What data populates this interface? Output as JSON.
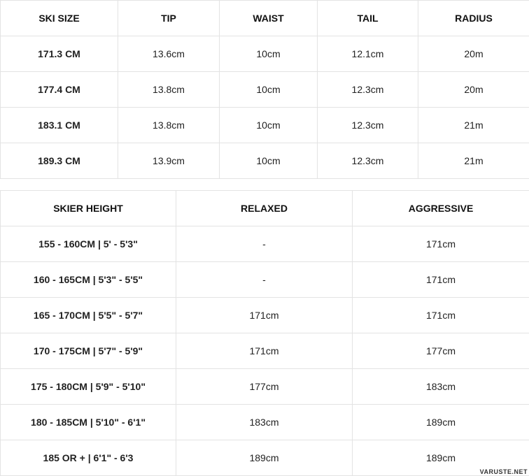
{
  "ski_table": {
    "headers": [
      "SKI SIZE",
      "TIP",
      "WAIST",
      "TAIL",
      "RADIUS"
    ],
    "rows": [
      [
        "171.3 CM",
        "13.6cm",
        "10cm",
        "12.1cm",
        "20m"
      ],
      [
        "177.4 CM",
        "13.8cm",
        "10cm",
        "12.3cm",
        "20m"
      ],
      [
        "183.1 CM",
        "13.8cm",
        "10cm",
        "12.3cm",
        "21m"
      ],
      [
        "189.3 CM",
        "13.9cm",
        "10cm",
        "12.3cm",
        "21m"
      ]
    ]
  },
  "height_table": {
    "headers": [
      "SKIER HEIGHT",
      "RELAXED",
      "AGGRESSIVE"
    ],
    "rows": [
      [
        "155 - 160CM | 5' - 5'3\"",
        "-",
        "171cm"
      ],
      [
        "160 - 165CM | 5'3\" - 5'5\"",
        "-",
        "171cm"
      ],
      [
        "165 - 170CM | 5'5\" - 5'7\"",
        "171cm",
        "171cm"
      ],
      [
        "170 - 175CM | 5'7\" - 5'9\"",
        "171cm",
        "177cm"
      ],
      [
        "175 - 180CM | 5'9\" - 5'10\"",
        "177cm",
        "183cm"
      ],
      [
        "180 - 185CM | 5'10\" - 6'1\"",
        "183cm",
        "189cm"
      ],
      [
        "185 OR + | 6'1\" - 6'3",
        "189cm",
        "189cm"
      ]
    ]
  },
  "watermark": "VARUSTE.NET"
}
